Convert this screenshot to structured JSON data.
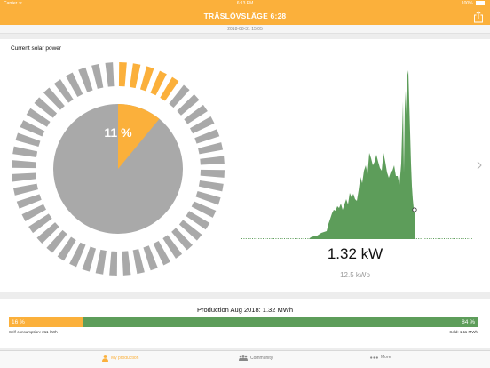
{
  "statusbar": {
    "carrier": "Carrier ᯤ",
    "time": "6:13 PM",
    "battery": "100%"
  },
  "navbar": {
    "title": "TRÄSLÖVSLÄGE 6:28",
    "share_icon": "share-icon"
  },
  "timestamp": "2018-08-31 15:05",
  "current_power": {
    "title": "Current solar power",
    "percent": 11,
    "percent_label": "11 %",
    "value_label": "1.32 kW",
    "capacity_label": "12.5 kWp",
    "colors": {
      "active": "#fbb03b",
      "inactive": "#a9a9a9",
      "chart": "#5d9d5a"
    }
  },
  "production": {
    "title": "Production Aug 2018: 1.32 MWh",
    "self_percent": 16,
    "self_pct_label": "16 %",
    "sold_pct_label": "84 %",
    "self_label": "Self-consumption: 211 kWh",
    "sold_label": "Sold: 1.11 MWh"
  },
  "tabs": [
    {
      "label": "My production",
      "icon": "person-icon",
      "active": true
    },
    {
      "label": "Community",
      "icon": "group-icon",
      "active": false
    },
    {
      "label": "More",
      "icon": "more-dots-icon",
      "active": false
    }
  ]
}
